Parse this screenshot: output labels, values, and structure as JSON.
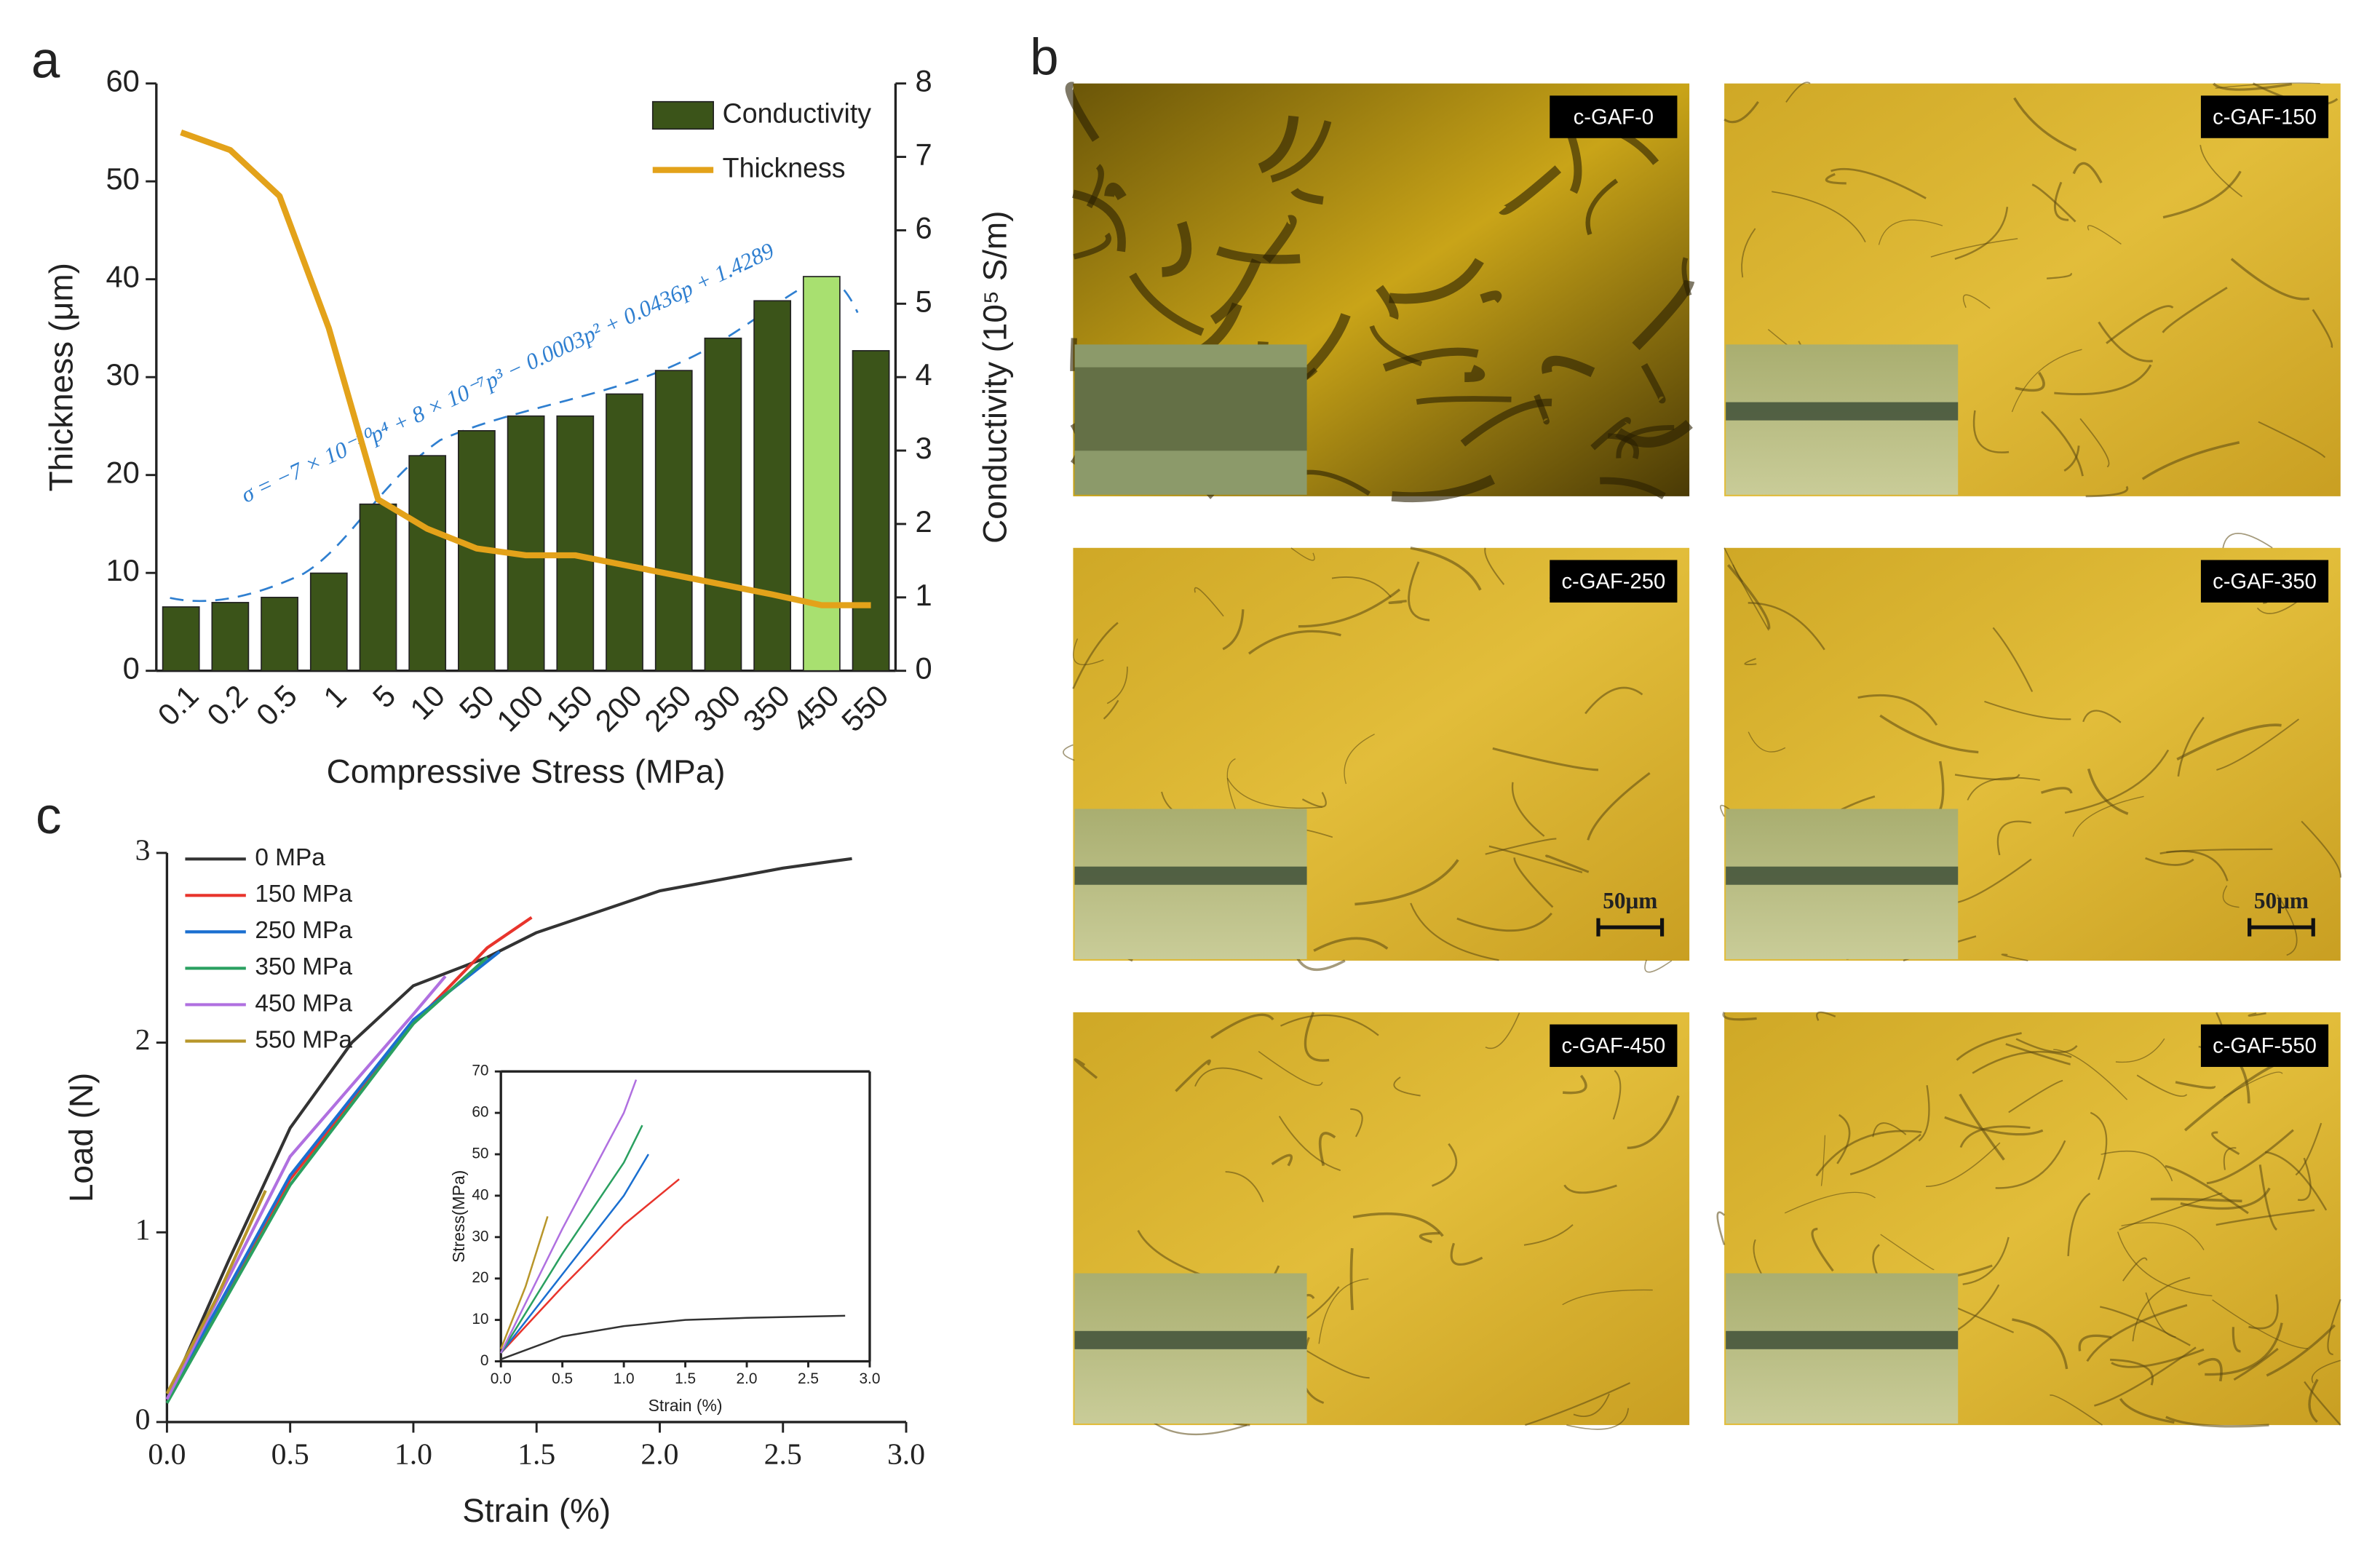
{
  "chart_data": [
    {
      "type": "bar",
      "label": "a",
      "xlabel": "Compressive Stress (MPa)",
      "ylabel": "Thickness (μm)",
      "y2label": "Conductivity (10⁵ S/m)",
      "annotation": "σ = −7 × 10⁻¹⁰p⁴ + 8 × 10⁻⁷p³ − 0.0003p² + 0.0436p + 1.4289",
      "categories": [
        "0.1",
        "0.2",
        "0.5",
        "1",
        "5",
        "10",
        "50",
        "100",
        "150",
        "200",
        "250",
        "300",
        "350",
        "450",
        "550"
      ],
      "ylim": [
        0,
        60
      ],
      "yticks": [
        0,
        10,
        20,
        30,
        40,
        50,
        60
      ],
      "y2lim": [
        0,
        8
      ],
      "y2ticks": [
        0,
        1,
        2,
        3,
        4,
        5,
        6,
        7,
        8
      ],
      "series": [
        {
          "name": "Conductivity",
          "type": "bar",
          "axis": "y2",
          "color": "#3b5419",
          "colors": [
            "#3b5419",
            "#3b5419",
            "#3b5419",
            "#3b5419",
            "#3b5419",
            "#3b5419",
            "#3b5419",
            "#3b5419",
            "#3b5419",
            "#3b5419",
            "#3b5419",
            "#3b5419",
            "#3b5419",
            "#a8e070",
            "#3b5419"
          ],
          "values": [
            0.87,
            0.93,
            1.0,
            1.33,
            2.27,
            2.93,
            3.27,
            3.47,
            3.47,
            3.77,
            4.09,
            4.53,
            5.04,
            5.37,
            4.36
          ]
        },
        {
          "name": "Thickness",
          "type": "line",
          "axis": "y",
          "color": "#e3a21a",
          "values": [
            55,
            53.2,
            48.5,
            35,
            17.5,
            14.5,
            12.5,
            11.8,
            11.8,
            10.8,
            9.8,
            8.8,
            7.8,
            6.7,
            6.7
          ]
        }
      ]
    },
    {
      "type": "line",
      "label": "c",
      "xlabel": "Strain (%)",
      "ylabel": "Load (N)",
      "xlim": [
        0,
        3
      ],
      "xticks": [
        {
          "value": 0,
          "label": "0.0"
        },
        0.5,
        {
          "value": 1,
          "label": "1.0"
        },
        1.5,
        {
          "value": 2,
          "label": "2.0"
        },
        2.5,
        {
          "value": 3,
          "label": "3.0"
        }
      ],
      "ylim": [
        0,
        3
      ],
      "yticks": [
        0,
        1,
        2,
        3
      ],
      "series": [
        {
          "name": "0 MPa",
          "color": "#333333",
          "x": [
            0,
            0.25,
            0.5,
            0.75,
            1.0,
            1.3,
            1.5,
            2.0,
            2.5,
            2.78
          ],
          "values": [
            0.12,
            0.85,
            1.55,
            2.0,
            2.3,
            2.45,
            2.58,
            2.8,
            2.92,
            2.97
          ]
        },
        {
          "name": "150 MPa",
          "color": "#e8342c",
          "x": [
            0,
            0.5,
            1.0,
            1.3,
            1.48
          ],
          "values": [
            0.12,
            1.28,
            2.1,
            2.5,
            2.66
          ]
        },
        {
          "name": "250 MPa",
          "color": "#1a6fd0",
          "x": [
            0,
            0.5,
            1.0,
            1.35
          ],
          "values": [
            0.12,
            1.3,
            2.12,
            2.48
          ]
        },
        {
          "name": "350 MPa",
          "color": "#2aa060",
          "x": [
            0,
            0.5,
            1.0,
            1.3
          ],
          "values": [
            0.1,
            1.25,
            2.1,
            2.45
          ]
        },
        {
          "name": "450 MPa",
          "color": "#b070e0",
          "x": [
            0,
            0.5,
            1.0,
            1.13
          ],
          "values": [
            0.12,
            1.4,
            2.15,
            2.35
          ]
        },
        {
          "name": "550 MPa",
          "color": "#b8962a",
          "x": [
            0,
            0.2,
            0.4
          ],
          "values": [
            0.15,
            0.65,
            1.22
          ]
        }
      ]
    },
    {
      "type": "line",
      "xlabel": "Strain (%)",
      "ylabel": "Stress(MPa)",
      "xlim": [
        0,
        3
      ],
      "xticks": [
        {
          "value": 0,
          "label": "0.0"
        },
        0.5,
        {
          "value": 1,
          "label": "1.0"
        },
        1.5,
        {
          "value": 2,
          "label": "2.0"
        },
        2.5,
        {
          "value": 3,
          "label": "3.0"
        }
      ],
      "ylim": [
        0,
        70
      ],
      "yticks": [
        0,
        10,
        20,
        30,
        40,
        50,
        60,
        70
      ],
      "series": [
        {
          "color": "#333333",
          "x": [
            0,
            0.5,
            1.0,
            1.5,
            2.0,
            2.8
          ],
          "values": [
            0.5,
            6,
            8.5,
            10,
            10.5,
            11
          ]
        },
        {
          "color": "#e8342c",
          "x": [
            0,
            0.5,
            1.0,
            1.45
          ],
          "values": [
            2,
            18,
            33,
            44
          ]
        },
        {
          "color": "#1a6fd0",
          "x": [
            0,
            0.5,
            1.0,
            1.2
          ],
          "values": [
            2,
            21,
            40,
            50
          ]
        },
        {
          "color": "#2aa060",
          "x": [
            0,
            0.5,
            1.0,
            1.15
          ],
          "values": [
            2,
            26,
            48,
            57
          ]
        },
        {
          "color": "#b070e0",
          "x": [
            0,
            0.5,
            1.0,
            1.1
          ],
          "values": [
            2,
            32,
            60,
            68
          ]
        },
        {
          "color": "#b8962a",
          "x": [
            0,
            0.2,
            0.38
          ],
          "values": [
            3,
            18,
            35
          ]
        }
      ]
    }
  ],
  "micrographs": {
    "label": "b",
    "images": [
      "c-GAF-0",
      "c-GAF-150",
      "c-GAF-250",
      "c-GAF-350",
      "c-GAF-450",
      "c-GAF-550"
    ],
    "scale_bar": "50μm"
  }
}
